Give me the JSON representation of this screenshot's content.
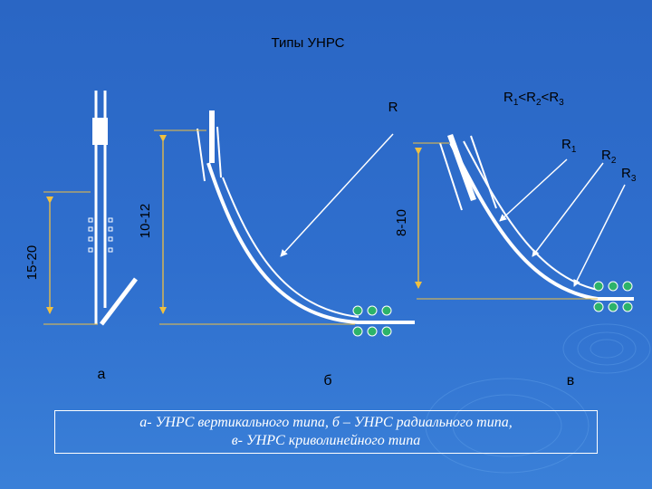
{
  "title": "Типы УНРС",
  "labels": {
    "r": "R",
    "relation_r1": "R",
    "relation_s1": "1",
    "relation_lt1": "<R",
    "relation_s2": "2",
    "relation_lt2": "<R",
    "relation_s3": "3",
    "r1_main": "R",
    "r1_sub": "1",
    "r2_main": "R",
    "r2_sub": "2",
    "r3_main": "R",
    "r3_sub": "3"
  },
  "dimensions": {
    "a": "15-20",
    "b": "10-12",
    "c": "8-10"
  },
  "panels": {
    "a": "а",
    "b": "б",
    "c": "в"
  },
  "caption": {
    "line1": "а- УНРС вертикального типа, б – УНРС радиального типа,",
    "line2": "в- УНРС криволинейного типа"
  },
  "colors": {
    "background": "#2f6fce",
    "lines": "#ffffff",
    "dimension_lines": "#f0c040",
    "rollers": "#2db36a"
  }
}
